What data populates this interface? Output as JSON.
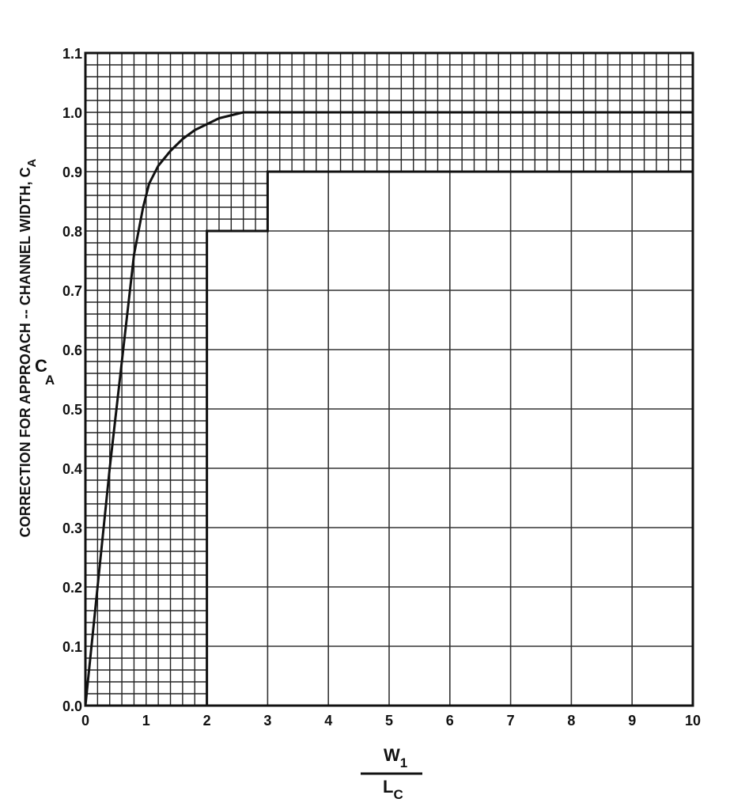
{
  "chart_data": {
    "type": "line",
    "title": "",
    "ylabel": "CORRECTION FOR APPROACH  -- CHANNEL WIDTH, C",
    "ylabel_sub": "A",
    "ylabel_inner": "C",
    "ylabel_inner_sub": "A",
    "xlabel_numerator": "W",
    "xlabel_numerator_sub": "1",
    "xlabel_denominator": "L",
    "xlabel_denominator_sub": "C",
    "xlim": [
      0,
      10
    ],
    "ylim": [
      0,
      1.1
    ],
    "x_ticks": [
      "0",
      "1",
      "2",
      "3",
      "4",
      "5",
      "6",
      "7",
      "8",
      "9",
      "10"
    ],
    "y_ticks": [
      "0.0",
      "0.1",
      "0.2",
      "0.3",
      "0.4",
      "0.5",
      "0.6",
      "0.7",
      "0.8",
      "0.9",
      "1.0",
      "1.1"
    ],
    "grid": "fine grid in shaded region, coarse grid in open region",
    "series": [
      {
        "x": [
          0,
          0.2,
          0.4,
          0.6,
          0.8,
          0.95,
          1.05,
          1.2,
          1.4,
          1.6,
          1.8,
          2.0,
          2.2,
          2.4,
          2.6,
          3.0,
          4.0,
          10.0
        ],
        "y": [
          0.0,
          0.2,
          0.4,
          0.58,
          0.76,
          0.84,
          0.88,
          0.91,
          0.935,
          0.955,
          0.97,
          0.98,
          0.99,
          0.995,
          1.0,
          1.0,
          1.0,
          1.0
        ]
      }
    ],
    "excluded_region_boundary": {
      "x": [
        2,
        2,
        3,
        3,
        10
      ],
      "y": [
        0,
        0.8,
        0.8,
        0.9,
        0.9
      ]
    }
  }
}
